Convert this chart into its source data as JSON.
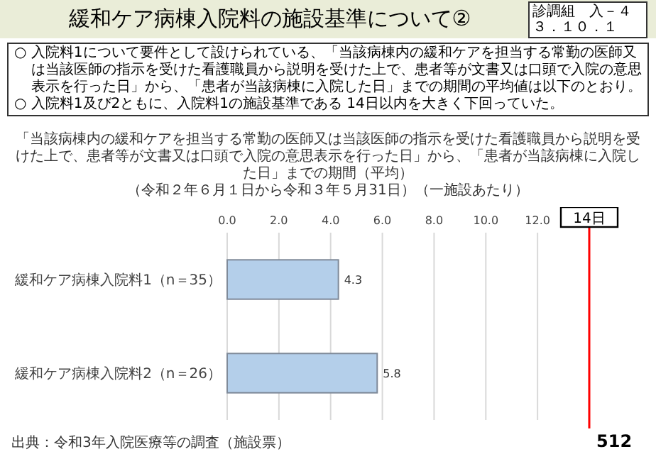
{
  "chart_data": {
    "type": "bar",
    "orientation": "horizontal",
    "title": "緩和ケア病棟入院料の施設基準について②",
    "subtitle": "「当該病棟内の緩和ケアを担当する常勤の医師又は当該医師の指示を受けた看護職員から説明を受けた上で、患者等が文書又は口頭で入院の意思表示を行った日」から、「患者が当該病棟に入院した日」までの期間（平均）",
    "categories": [
      "緩和ケア病棟入院料1（n＝35）",
      "緩和ケア病棟入院料2（n＝26）"
    ],
    "values": [
      4.3,
      5.8
    ],
    "color": "#b4cfea",
    "data_labels": true,
    "xlim": [
      0,
      14
    ],
    "xticks": [
      {
        "value": 0,
        "label": "0.0"
      },
      {
        "value": 2,
        "label": "2.0"
      },
      {
        "value": 4,
        "label": "4.0"
      },
      {
        "value": 6,
        "label": "6.0"
      },
      {
        "value": 8,
        "label": "8.0"
      },
      {
        "value": 10,
        "label": "10.0"
      },
      {
        "value": 12,
        "label": "12.0"
      }
    ],
    "grid": "x",
    "ref_lines": [
      {
        "axis": "x",
        "value": 14,
        "label": "14日",
        "color": "#ff0000"
      }
    ],
    "annotations": [
      "診調組　入－４",
      "３．１０．１",
      "○ 入院料1について要件として設けられている、「当該病棟内の緩和ケアを担当する常勤の医師又は当該医師の指示を受けた看護職員から説明を受けた上で、患者等が文書又は口頭で入院の意思表示を行った日」から、「患者が当該病棟に入院した日」までの期間の平均値は以下のとおり。",
      "○ 入院料1及び2ともに、入院料1の施設基準である 14日以内を大きく下回っていた。",
      "出典：令和3年入院医療等の調査（施設票）",
      "512",
      "（令和２年６月１日から令和３年５月31日）（一施設あたり）"
    ]
  }
}
